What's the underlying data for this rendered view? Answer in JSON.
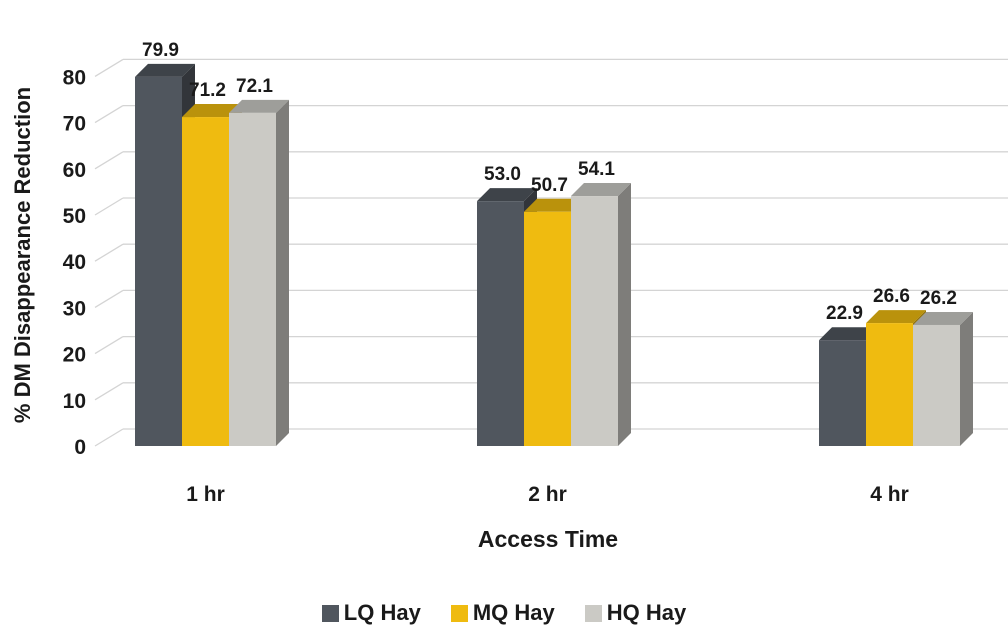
{
  "chart_data": {
    "type": "bar",
    "categories": [
      "1 hr",
      "2 hr",
      "4 hr"
    ],
    "series": [
      {
        "name": "LQ Hay",
        "color": "#50565e",
        "values": [
          79.9,
          53.0,
          22.9
        ],
        "labels": [
          "79.9",
          "53.0",
          "22.9"
        ]
      },
      {
        "name": "MQ Hay",
        "color": "#efbb10",
        "values": [
          71.2,
          50.7,
          26.6
        ],
        "labels": [
          "71.2",
          "50.7",
          "26.6"
        ]
      },
      {
        "name": "HQ Hay",
        "color": "#cbcac5",
        "values": [
          72.1,
          54.1,
          26.2
        ],
        "labels": [
          "72.1",
          "54.1",
          "26.2"
        ]
      }
    ],
    "title": "",
    "xlabel": "Access Time",
    "ylabel": "% DM Disappearance Reduction",
    "ylim": [
      0,
      80
    ],
    "yticks": [
      "0",
      "10",
      "20",
      "30",
      "40",
      "50",
      "60",
      "70",
      "80"
    ],
    "grid": true,
    "legend_position": "bottom",
    "style": "3d"
  }
}
